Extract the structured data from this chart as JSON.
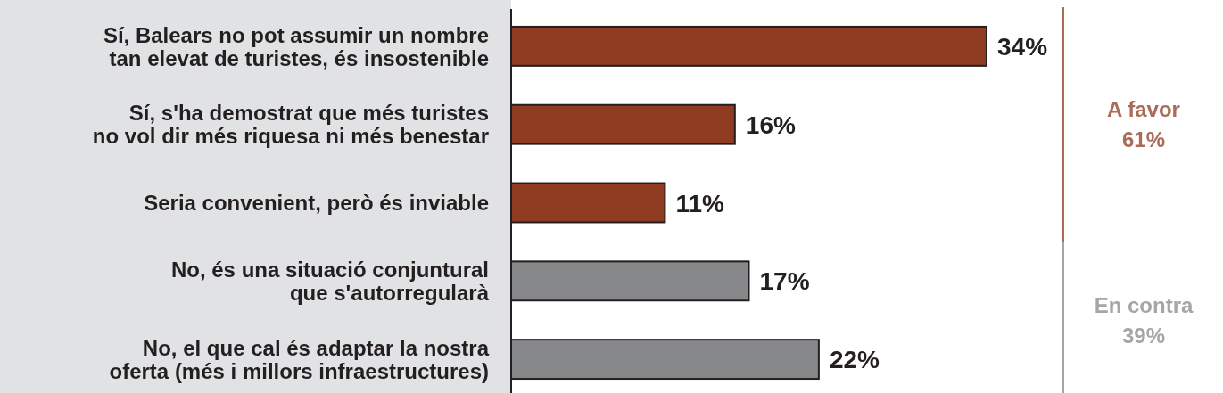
{
  "chart_data": {
    "type": "bar",
    "orientation": "horizontal",
    "categories": [
      "Sí, Balears no pot assumir un nombre\ntan elevat de turistes, és insostenible",
      "Sí, s'ha demostrat que més turistes\nno vol dir més riquesa ni més benestar",
      "Seria convenient, però és inviable",
      "No, és una situació conjuntural\nque s'autorregularà",
      "No, el que cal és adaptar la nostra\noferta (més i millors infraestructures)"
    ],
    "series": [
      {
        "color": "#8e3b22",
        "values": [
          34,
          16,
          11,
          null,
          null
        ],
        "value_labels": [
          "34%",
          "16%",
          "11%",
          null,
          null
        ]
      },
      {
        "color": "#87888a",
        "values": [
          null,
          null,
          null,
          17,
          22
        ],
        "value_labels": [
          null,
          null,
          null,
          "17%",
          "22%"
        ]
      }
    ],
    "annotations": [
      "A favor\n61%",
      "En contra\n39%"
    ]
  }
}
